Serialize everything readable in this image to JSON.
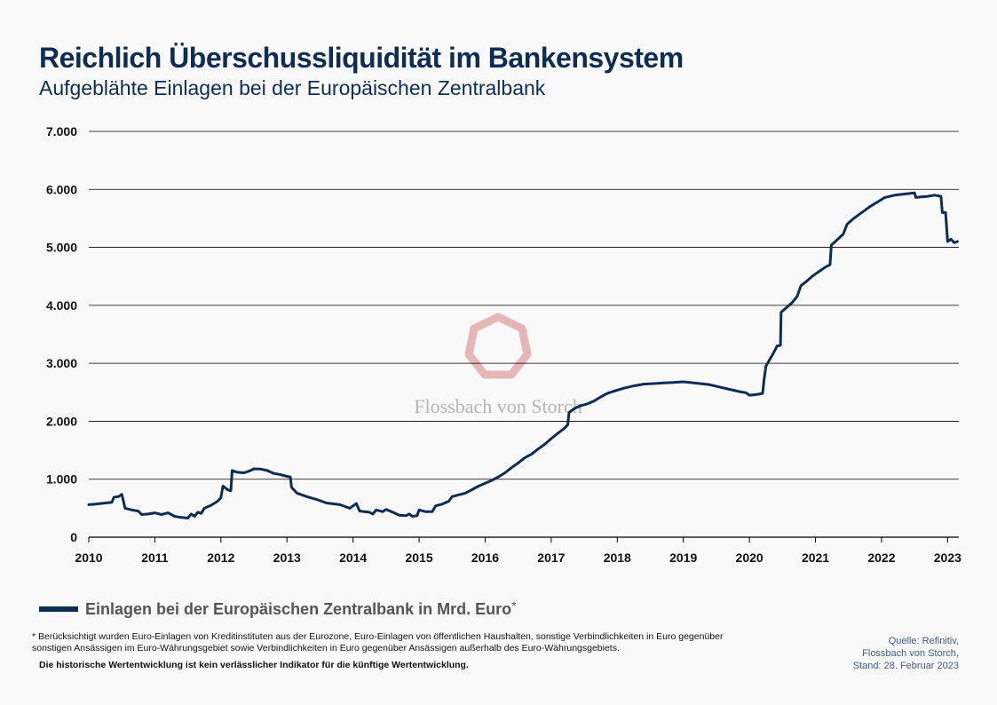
{
  "header": {
    "title": "Reichlich Überschussliquidität im Bankensystem",
    "subtitle": "Aufgeblähte Einlagen bei der Europäischen Zentralbank"
  },
  "watermark": {
    "text": "Flossbach von Storch",
    "icon": "heptagon-logo-icon"
  },
  "legend": {
    "label": "Einlagen bei der Europäischen Zentralbank in Mrd. Euro",
    "marker": "*"
  },
  "footnote": {
    "text": "* Berücksichtigt wurden Euro-Einlagen von Kreditinstituten aus der Eurozone, Euro-Einlagen von öffentlichen Haushalten, sonstige Verbindlichkeiten in Euro gegenüber sonstigen Ansässigen im Euro-Währungsgebiet sowie Verbindlichkeiten in Euro gegenüber Ansässigen außerhalb des Euro-Währungsgebiets.",
    "disclaimer": "Die historische Wertentwicklung ist kein verlässlicher Indikator für die künftige Wertentwicklung."
  },
  "source": {
    "line1": "Quelle: Refinitiv,",
    "line2": "Flossbach von Storch,",
    "line3": "Stand: 28. Februar 2023"
  },
  "colors": {
    "line": "#0d2d55",
    "grid": "#000000",
    "title": "#0d2d55",
    "watermark_logo": "#e3a9a9"
  },
  "chart_data": {
    "type": "line",
    "title": "Reichlich Überschussliquidität im Bankensystem",
    "subtitle": "Aufgeblähte Einlagen bei der Europäischen Zentralbank",
    "xlabel": "",
    "ylabel": "",
    "xlim": [
      2010.0,
      2023.17
    ],
    "ylim": [
      0,
      7000
    ],
    "xticks": [
      2010,
      2011,
      2012,
      2013,
      2014,
      2015,
      2016,
      2017,
      2018,
      2019,
      2020,
      2021,
      2022,
      2023
    ],
    "xtick_labels": [
      "2010",
      "2011",
      "2012",
      "2013",
      "2014",
      "2015",
      "2016",
      "2017",
      "2018",
      "2019",
      "2020",
      "2021",
      "2022",
      "2023"
    ],
    "yticks": [
      0,
      1000,
      2000,
      3000,
      4000,
      5000,
      6000,
      7000
    ],
    "ytick_labels": [
      "0",
      "1.000",
      "2.000",
      "3.000",
      "4.000",
      "5.000",
      "6.000",
      "7.000"
    ],
    "grid": "horizontal",
    "legend_position": "bottom-left",
    "series": [
      {
        "name": "Einlagen bei der Europäischen Zentralbank in Mrd. Euro",
        "points": [
          [
            2010.0,
            560
          ],
          [
            2010.1,
            570
          ],
          [
            2010.25,
            590
          ],
          [
            2010.35,
            600
          ],
          [
            2010.38,
            690
          ],
          [
            2010.45,
            700
          ],
          [
            2010.5,
            740
          ],
          [
            2010.55,
            500
          ],
          [
            2010.65,
            470
          ],
          [
            2010.75,
            450
          ],
          [
            2010.8,
            390
          ],
          [
            2010.9,
            400
          ],
          [
            2011.0,
            420
          ],
          [
            2011.1,
            390
          ],
          [
            2011.2,
            420
          ],
          [
            2011.3,
            360
          ],
          [
            2011.4,
            340
          ],
          [
            2011.5,
            330
          ],
          [
            2011.55,
            400
          ],
          [
            2011.6,
            360
          ],
          [
            2011.65,
            430
          ],
          [
            2011.7,
            410
          ],
          [
            2011.75,
            500
          ],
          [
            2011.85,
            550
          ],
          [
            2011.95,
            620
          ],
          [
            2012.0,
            680
          ],
          [
            2012.03,
            880
          ],
          [
            2012.1,
            820
          ],
          [
            2012.15,
            800
          ],
          [
            2012.17,
            1150
          ],
          [
            2012.25,
            1120
          ],
          [
            2012.35,
            1110
          ],
          [
            2012.45,
            1150
          ],
          [
            2012.5,
            1180
          ],
          [
            2012.6,
            1175
          ],
          [
            2012.7,
            1150
          ],
          [
            2012.8,
            1100
          ],
          [
            2012.9,
            1080
          ],
          [
            2013.0,
            1050
          ],
          [
            2013.05,
            1040
          ],
          [
            2013.07,
            860
          ],
          [
            2013.15,
            760
          ],
          [
            2013.3,
            700
          ],
          [
            2013.45,
            650
          ],
          [
            2013.6,
            590
          ],
          [
            2013.8,
            560
          ],
          [
            2013.95,
            500
          ],
          [
            2014.05,
            580
          ],
          [
            2014.1,
            450
          ],
          [
            2014.25,
            430
          ],
          [
            2014.3,
            400
          ],
          [
            2014.35,
            470
          ],
          [
            2014.45,
            440
          ],
          [
            2014.5,
            480
          ],
          [
            2014.6,
            430
          ],
          [
            2014.7,
            380
          ],
          [
            2014.8,
            370
          ],
          [
            2014.85,
            400
          ],
          [
            2014.9,
            360
          ],
          [
            2014.97,
            370
          ],
          [
            2015.0,
            470
          ],
          [
            2015.1,
            440
          ],
          [
            2015.2,
            440
          ],
          [
            2015.25,
            540
          ],
          [
            2015.35,
            570
          ],
          [
            2015.45,
            620
          ],
          [
            2015.5,
            700
          ],
          [
            2015.6,
            730
          ],
          [
            2015.7,
            760
          ],
          [
            2015.8,
            820
          ],
          [
            2015.9,
            880
          ],
          [
            2016.0,
            930
          ],
          [
            2016.1,
            980
          ],
          [
            2016.2,
            1040
          ],
          [
            2016.3,
            1110
          ],
          [
            2016.4,
            1200
          ],
          [
            2016.5,
            1280
          ],
          [
            2016.6,
            1370
          ],
          [
            2016.7,
            1430
          ],
          [
            2016.8,
            1520
          ],
          [
            2016.9,
            1600
          ],
          [
            2017.0,
            1700
          ],
          [
            2017.1,
            1790
          ],
          [
            2017.2,
            1880
          ],
          [
            2017.25,
            1940
          ],
          [
            2017.27,
            2150
          ],
          [
            2017.35,
            2220
          ],
          [
            2017.45,
            2270
          ],
          [
            2017.55,
            2300
          ],
          [
            2017.65,
            2350
          ],
          [
            2017.75,
            2420
          ],
          [
            2017.85,
            2480
          ],
          [
            2017.95,
            2520
          ],
          [
            2018.1,
            2570
          ],
          [
            2018.25,
            2610
          ],
          [
            2018.4,
            2640
          ],
          [
            2018.55,
            2650
          ],
          [
            2018.7,
            2660
          ],
          [
            2018.85,
            2670
          ],
          [
            2019.0,
            2680
          ],
          [
            2019.1,
            2670
          ],
          [
            2019.25,
            2650
          ],
          [
            2019.4,
            2630
          ],
          [
            2019.55,
            2590
          ],
          [
            2019.7,
            2550
          ],
          [
            2019.85,
            2510
          ],
          [
            2019.95,
            2490
          ],
          [
            2020.0,
            2450
          ],
          [
            2020.1,
            2460
          ],
          [
            2020.2,
            2480
          ],
          [
            2020.22,
            2700
          ],
          [
            2020.25,
            2950
          ],
          [
            2020.35,
            3150
          ],
          [
            2020.42,
            3300
          ],
          [
            2020.47,
            3310
          ],
          [
            2020.48,
            3880
          ],
          [
            2020.55,
            3950
          ],
          [
            2020.65,
            4050
          ],
          [
            2020.72,
            4150
          ],
          [
            2020.78,
            4340
          ],
          [
            2020.85,
            4400
          ],
          [
            2020.95,
            4500
          ],
          [
            2021.05,
            4580
          ],
          [
            2021.15,
            4660
          ],
          [
            2021.22,
            4700
          ],
          [
            2021.24,
            5040
          ],
          [
            2021.32,
            5120
          ],
          [
            2021.42,
            5230
          ],
          [
            2021.48,
            5400
          ],
          [
            2021.58,
            5500
          ],
          [
            2021.7,
            5600
          ],
          [
            2021.82,
            5700
          ],
          [
            2021.95,
            5790
          ],
          [
            2022.05,
            5860
          ],
          [
            2022.2,
            5900
          ],
          [
            2022.35,
            5920
          ],
          [
            2022.5,
            5940
          ],
          [
            2022.52,
            5860
          ],
          [
            2022.6,
            5870
          ],
          [
            2022.7,
            5880
          ],
          [
            2022.8,
            5900
          ],
          [
            2022.9,
            5880
          ],
          [
            2022.92,
            5600
          ],
          [
            2022.97,
            5600
          ],
          [
            2023.0,
            5100
          ],
          [
            2023.05,
            5140
          ],
          [
            2023.1,
            5080
          ],
          [
            2023.15,
            5100
          ]
        ]
      }
    ]
  }
}
